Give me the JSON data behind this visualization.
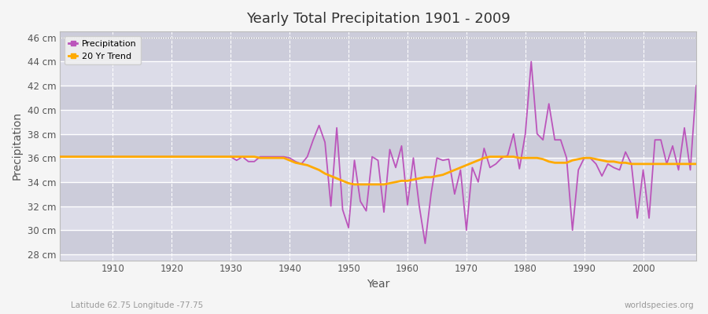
{
  "title": "Yearly Total Precipitation 1901 - 2009",
  "xlabel": "Year",
  "ylabel": "Precipitation",
  "subtitle_left": "Latitude 62.75 Longitude -77.75",
  "subtitle_right": "worldspecies.org",
  "ylim": [
    27.5,
    46.5
  ],
  "yticks": [
    28,
    30,
    32,
    34,
    36,
    38,
    40,
    42,
    44,
    46
  ],
  "ytick_labels": [
    "28 cm",
    "30 cm",
    "32 cm",
    "34 cm",
    "36 cm",
    "38 cm",
    "40 cm",
    "42 cm",
    "44 cm",
    "46 cm"
  ],
  "xticks": [
    1910,
    1920,
    1930,
    1940,
    1950,
    1960,
    1970,
    1980,
    1990,
    2000
  ],
  "xlim": [
    1901,
    2009
  ],
  "fig_bg_color": "#f5f5f5",
  "plot_bg_color": "#dcdce8",
  "band_color_dark": "#ccccda",
  "band_color_light": "#dcdce8",
  "grid_color": "#ffffff",
  "precip_color": "#bb55bb",
  "trend_color": "#ffaa00",
  "legend_bg": "#f0f0f0",
  "years": [
    1901,
    1902,
    1903,
    1904,
    1905,
    1906,
    1907,
    1908,
    1909,
    1910,
    1911,
    1912,
    1913,
    1914,
    1915,
    1916,
    1917,
    1918,
    1919,
    1920,
    1921,
    1922,
    1923,
    1924,
    1925,
    1926,
    1927,
    1928,
    1929,
    1930,
    1931,
    1932,
    1933,
    1934,
    1935,
    1936,
    1937,
    1938,
    1939,
    1940,
    1941,
    1942,
    1943,
    1944,
    1945,
    1946,
    1947,
    1948,
    1949,
    1950,
    1951,
    1952,
    1953,
    1954,
    1955,
    1956,
    1957,
    1958,
    1959,
    1960,
    1961,
    1962,
    1963,
    1964,
    1965,
    1966,
    1967,
    1968,
    1969,
    1970,
    1971,
    1972,
    1973,
    1974,
    1975,
    1976,
    1977,
    1978,
    1979,
    1980,
    1981,
    1982,
    1983,
    1984,
    1985,
    1986,
    1987,
    1988,
    1989,
    1990,
    1991,
    1992,
    1993,
    1994,
    1995,
    1996,
    1997,
    1998,
    1999,
    2000,
    2001,
    2002,
    2003,
    2004,
    2005,
    2006,
    2007,
    2008,
    2009
  ],
  "precipitation": [
    36.1,
    36.1,
    36.1,
    36.1,
    36.1,
    36.1,
    36.1,
    36.1,
    36.1,
    36.1,
    36.1,
    36.1,
    36.1,
    36.1,
    36.1,
    36.1,
    36.1,
    36.1,
    36.1,
    36.1,
    36.1,
    36.1,
    36.1,
    36.1,
    36.1,
    36.1,
    36.1,
    36.1,
    36.1,
    36.1,
    35.8,
    36.1,
    35.7,
    35.7,
    36.1,
    36.1,
    36.1,
    36.1,
    36.1,
    36.0,
    35.7,
    35.5,
    36.1,
    37.5,
    38.7,
    37.3,
    32.0,
    38.5,
    31.7,
    30.2,
    35.8,
    32.4,
    31.6,
    36.1,
    35.8,
    31.5,
    36.7,
    35.2,
    37.0,
    32.1,
    36.0,
    32.0,
    28.9,
    33.0,
    36.0,
    35.8,
    35.9,
    33.0,
    35.0,
    30.0,
    35.2,
    34.0,
    36.8,
    35.2,
    35.5,
    36.0,
    36.2,
    38.0,
    35.1,
    38.0,
    44.0,
    38.0,
    37.5,
    40.5,
    37.5,
    37.5,
    36.0,
    30.0,
    35.0,
    36.0,
    36.0,
    35.5,
    34.5,
    35.5,
    35.2,
    35.0,
    36.5,
    35.5,
    31.0,
    35.0,
    31.0,
    37.5,
    37.5,
    35.5,
    37.0,
    35.0,
    38.5,
    35.0,
    42.0
  ],
  "trend": [
    36.1,
    36.1,
    36.1,
    36.1,
    36.1,
    36.1,
    36.1,
    36.1,
    36.1,
    36.1,
    36.1,
    36.1,
    36.1,
    36.1,
    36.1,
    36.1,
    36.1,
    36.1,
    36.1,
    36.1,
    36.1,
    36.1,
    36.1,
    36.1,
    36.1,
    36.1,
    36.1,
    36.1,
    36.1,
    36.1,
    36.1,
    36.1,
    36.1,
    36.1,
    36.0,
    36.0,
    36.0,
    36.0,
    36.0,
    35.8,
    35.6,
    35.5,
    35.4,
    35.2,
    35.0,
    34.7,
    34.5,
    34.3,
    34.1,
    33.9,
    33.8,
    33.8,
    33.8,
    33.8,
    33.8,
    33.8,
    33.9,
    34.0,
    34.1,
    34.1,
    34.2,
    34.3,
    34.4,
    34.4,
    34.5,
    34.6,
    34.8,
    35.0,
    35.2,
    35.4,
    35.6,
    35.8,
    36.0,
    36.1,
    36.1,
    36.1,
    36.1,
    36.1,
    36.0,
    36.0,
    36.0,
    36.0,
    35.9,
    35.7,
    35.6,
    35.6,
    35.6,
    35.8,
    35.9,
    36.0,
    36.0,
    35.9,
    35.8,
    35.7,
    35.7,
    35.6,
    35.6,
    35.5,
    35.5,
    35.5,
    35.5,
    35.5,
    35.5,
    35.5,
    35.5,
    35.5,
    35.5,
    35.5,
    35.5
  ]
}
